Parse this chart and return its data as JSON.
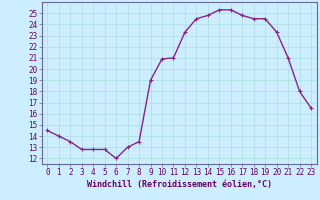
{
  "x": [
    0,
    1,
    2,
    3,
    4,
    5,
    6,
    7,
    8,
    9,
    10,
    11,
    12,
    13,
    14,
    15,
    16,
    17,
    18,
    19,
    20,
    21,
    22,
    23
  ],
  "y": [
    14.5,
    14.0,
    13.5,
    12.8,
    12.8,
    12.8,
    12.0,
    13.0,
    13.5,
    19.0,
    20.9,
    21.0,
    23.3,
    24.5,
    24.8,
    25.3,
    25.3,
    24.8,
    24.5,
    24.5,
    23.3,
    21.0,
    18.0,
    16.5
  ],
  "line_color": "#882288",
  "marker": "+",
  "marker_size": 3,
  "line_width": 1.0,
  "background_color": "#cceeff",
  "grid_color": "#aadddd",
  "xlabel": "Windchill (Refroidissement éolien,°C)",
  "xlabel_fontsize": 6.0,
  "xtick_labels": [
    "0",
    "1",
    "2",
    "3",
    "4",
    "5",
    "6",
    "7",
    "8",
    "9",
    "10",
    "11",
    "12",
    "13",
    "14",
    "15",
    "16",
    "17",
    "18",
    "19",
    "20",
    "21",
    "22",
    "23"
  ],
  "ytick_min": 12,
  "ytick_max": 25,
  "ytick_step": 1,
  "tick_fontsize": 5.5,
  "xlim": [
    -0.5,
    23.5
  ],
  "ylim": [
    11.5,
    26.0
  ],
  "spine_color": "#666699",
  "text_color": "#660066"
}
